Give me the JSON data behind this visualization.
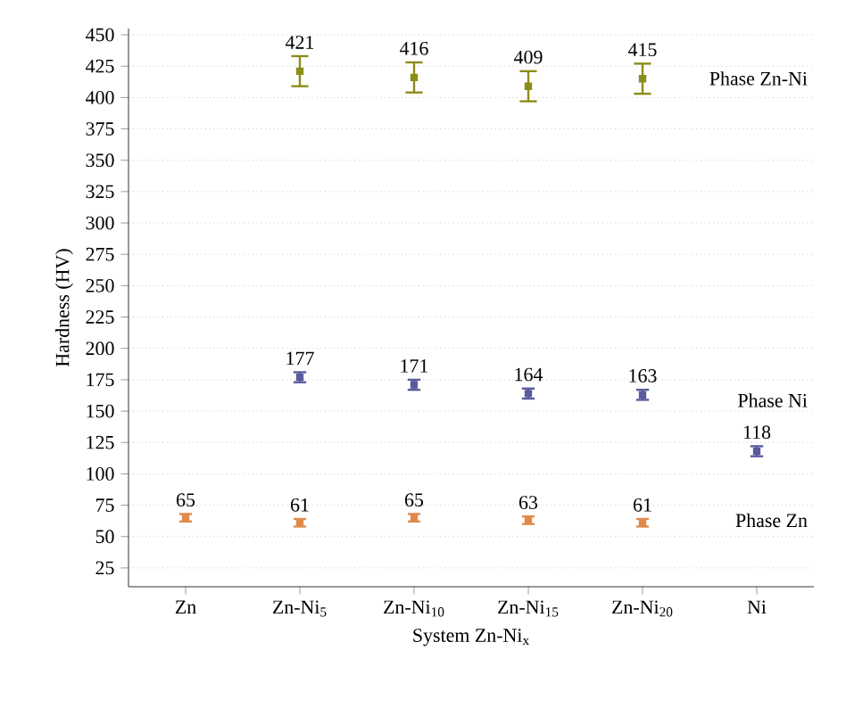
{
  "chart_data": {
    "type": "scatter",
    "xlabel": "System Zn-Ni$_{x}$",
    "ylabel": "Hardness (HV)",
    "categories": [
      "Zn",
      "Zn-Ni$_{5}$",
      "Zn-Ni$_{10}$",
      "Zn-Ni$_{15}$",
      "Zn-Ni$_{20}$",
      "Ni"
    ],
    "series": [
      {
        "name": "Phase Zn-Ni",
        "color": "#8c8c1a",
        "values": [
          null,
          421,
          416,
          409,
          415,
          null
        ],
        "errors": [
          null,
          12,
          12,
          12,
          12,
          null
        ]
      },
      {
        "name": "Phase Ni",
        "color": "#5a5a9e",
        "values": [
          null,
          177,
          171,
          164,
          163,
          118
        ],
        "errors": [
          null,
          4,
          4,
          4,
          4,
          4
        ]
      },
      {
        "name": "Phase Zn",
        "color": "#e08a4a",
        "values": [
          65,
          61,
          65,
          63,
          61,
          null
        ],
        "errors": [
          3,
          3,
          3,
          3,
          3,
          null
        ]
      }
    ],
    "ylim": [
      10,
      455
    ],
    "yticks": [
      25,
      50,
      75,
      100,
      125,
      150,
      175,
      200,
      225,
      250,
      275,
      300,
      325,
      350,
      375,
      400,
      425,
      450
    ],
    "grid": "y",
    "marker": "square",
    "data_labels": true
  }
}
